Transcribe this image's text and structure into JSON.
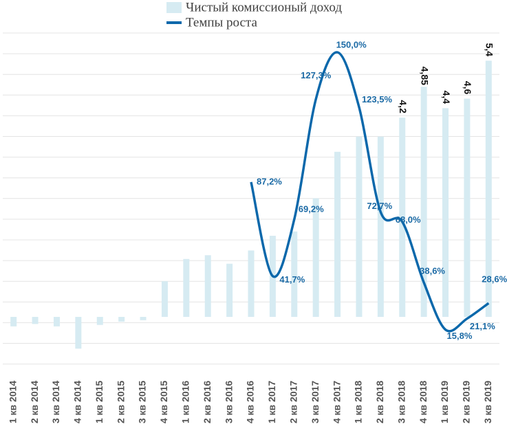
{
  "chart_data": {
    "type": "bar_line",
    "categories": [
      "1 кв 2014",
      "2 кв 2014",
      "3 кв 2014",
      "4 кв 2014",
      "1 кв 2015",
      "2 кв 2015",
      "3 кв 2015",
      "4 кв 2015",
      "1 кв 2016",
      "2 кв 2016",
      "3 кв 2016",
      "4 кв 2016",
      "1 кв 2017",
      "2 кв 2017",
      "3 кв 2017",
      "4 кв 2017",
      "1 кв 2018",
      "2 кв 2018",
      "3 кв 2018",
      "4 кв 2018",
      "1 кв 2019",
      "2 кв 2019",
      "3 кв 2019"
    ],
    "series": [
      {
        "name": "Чистый комиссионый доход",
        "color": "#d6ebf2",
        "values": [
          -0.2,
          -0.15,
          -0.2,
          -0.67,
          -0.17,
          -0.1,
          -0.07,
          0.75,
          1.22,
          1.3,
          1.12,
          1.4,
          1.71,
          1.8,
          2.5,
          3.48,
          3.8,
          3.8,
          4.2,
          4.85,
          4.4,
          4.6,
          5.4
        ],
        "value_labels": [
          null,
          null,
          null,
          null,
          null,
          null,
          null,
          null,
          null,
          null,
          null,
          null,
          null,
          null,
          null,
          null,
          null,
          null,
          "4,2",
          "4,85",
          "4,4",
          "4,6",
          "5,4"
        ]
      },
      {
        "name": "Темпы роста",
        "color": "#0b68ab",
        "axis": "y2",
        "values": [
          null,
          null,
          null,
          null,
          null,
          null,
          null,
          null,
          null,
          null,
          null,
          87.2,
          41.7,
          69.2,
          127.3,
          150.0,
          123.5,
          72.7,
          68.0,
          38.6,
          15.8,
          21.1,
          28.6
        ],
        "value_labels": [
          null,
          null,
          null,
          null,
          null,
          null,
          null,
          null,
          null,
          null,
          null,
          "87,2%",
          "41,7%",
          "69,2%",
          "127,3%",
          "150,0%",
          "123,5%",
          "72,7%",
          "68,0%",
          "38,6%",
          "15,8%",
          "21,1%",
          "28,6%"
        ]
      }
    ],
    "ylim": [
      -1,
      6.1
    ],
    "y2lim": [
      -1,
      162
    ]
  }
}
